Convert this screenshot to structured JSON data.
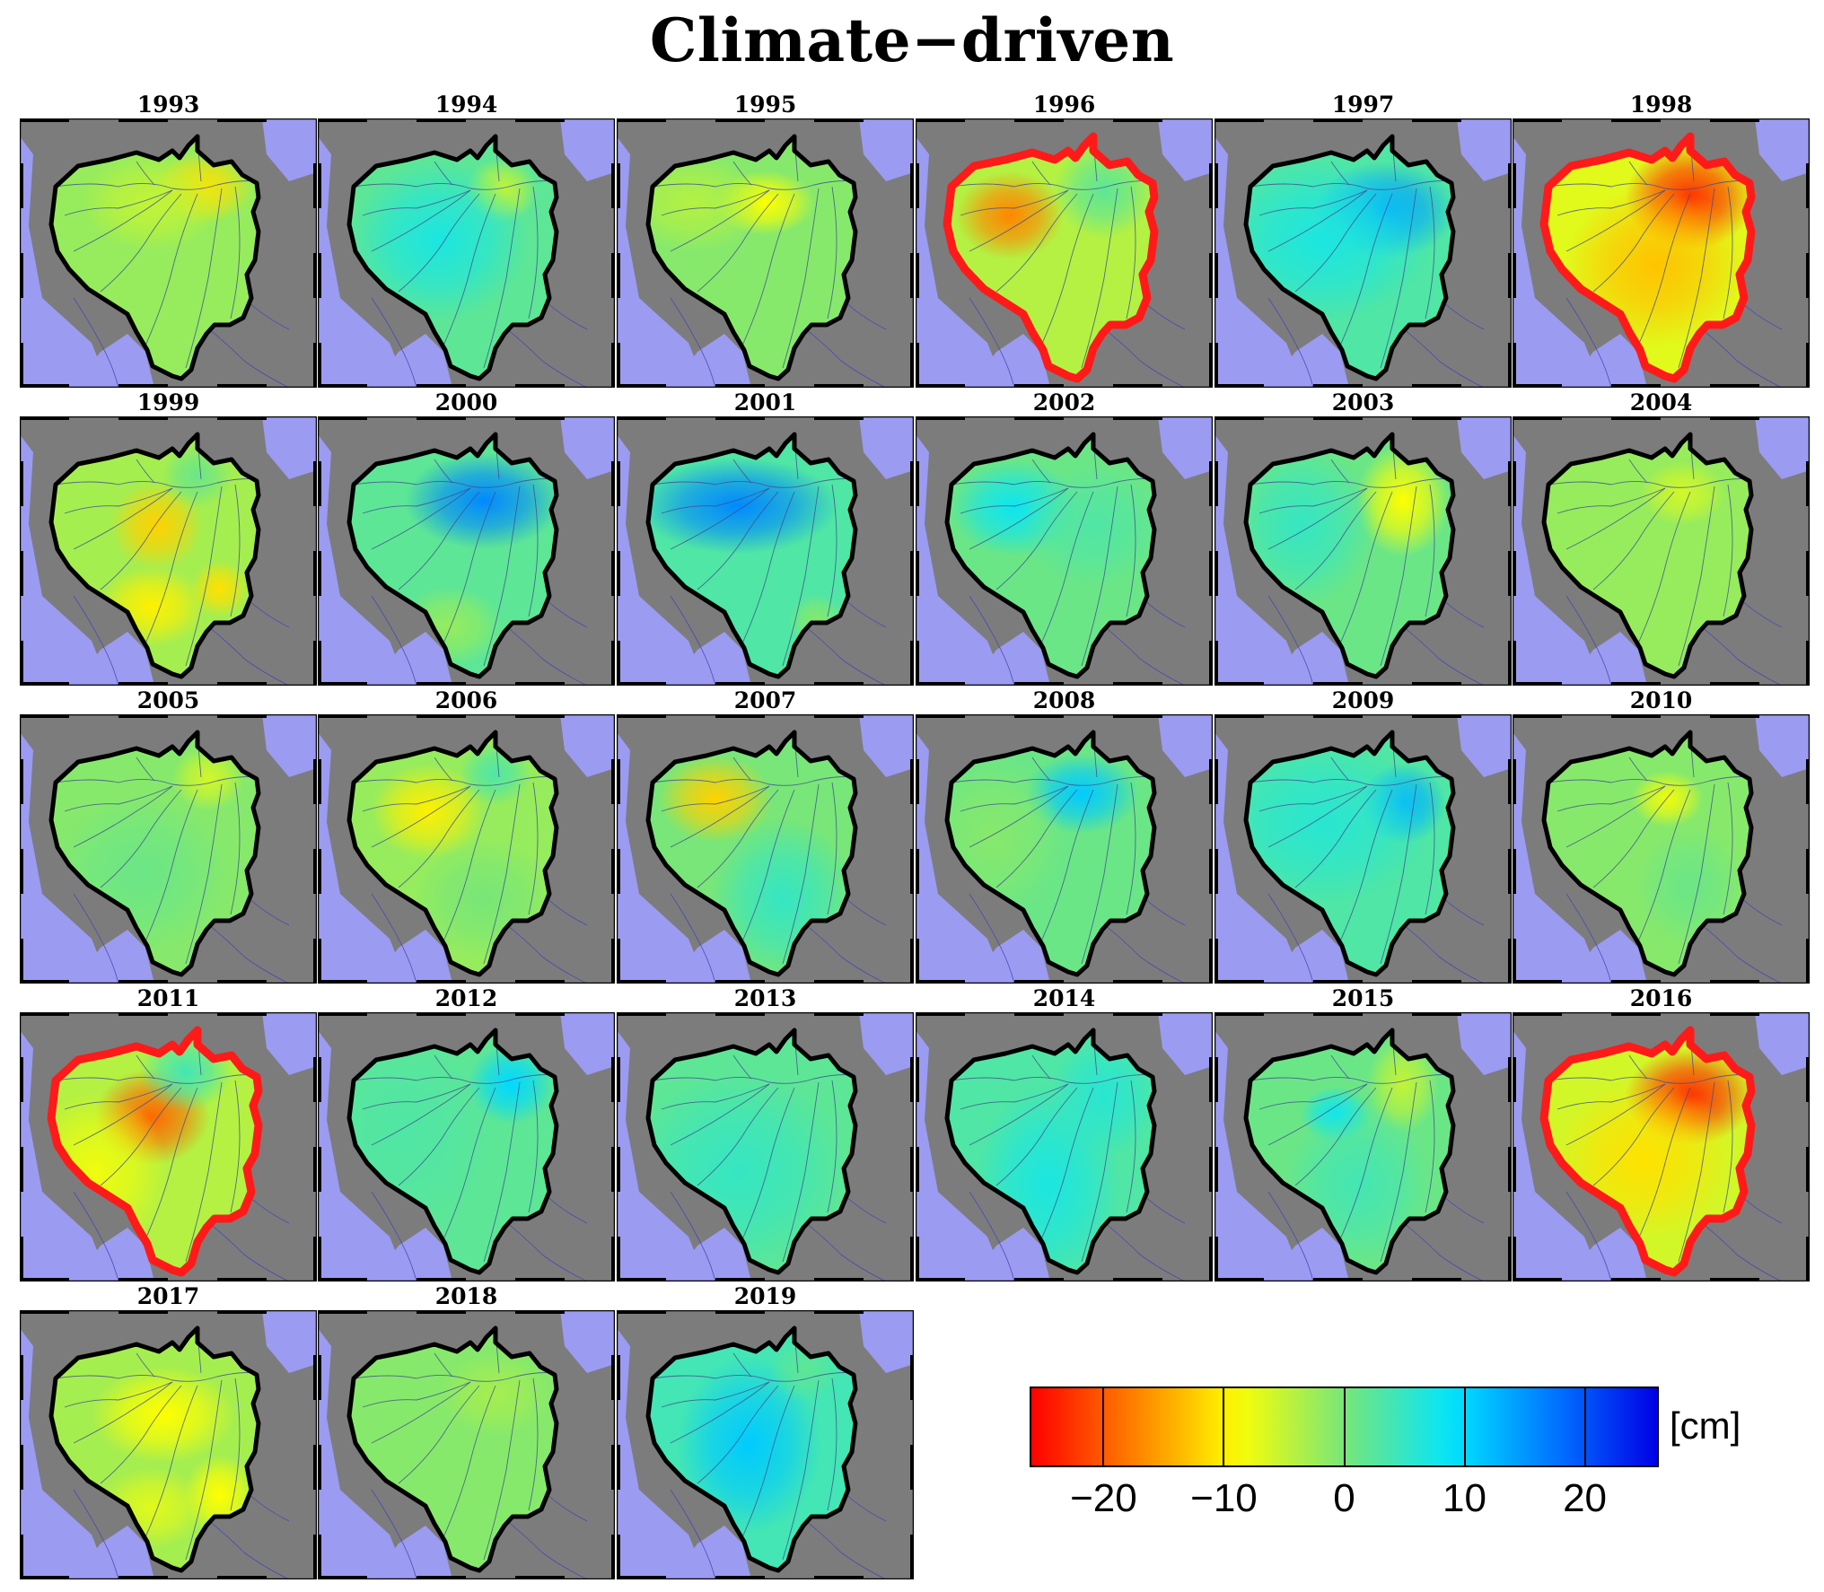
{
  "title": "Climate−driven",
  "colorbar": {
    "unit": "[cm]",
    "tick_labels": [
      "−20",
      "−10",
      "0",
      "10",
      "20"
    ],
    "tick_values": [
      -20,
      -10,
      0,
      10,
      20
    ],
    "range": [
      -26,
      26
    ],
    "colormap": "jet_reversed (red = negative, blue = positive)"
  },
  "colors": {
    "ocean": "#9b9bf2",
    "land": "#7c7c7c",
    "highlight_outline": "#ff1a1a",
    "basin_outline": "#000000"
  },
  "panels": [
    {
      "year": "1993",
      "highlight": false,
      "base": -2,
      "anomalies": [
        [
          0.78,
          0.24,
          -9,
          0.14,
          0.09
        ],
        [
          0.55,
          0.3,
          -3,
          0.2,
          0.12
        ]
      ]
    },
    {
      "year": "1994",
      "highlight": false,
      "base": 2,
      "anomalies": [
        [
          0.78,
          0.25,
          -7,
          0.1,
          0.08
        ],
        [
          0.5,
          0.45,
          5,
          0.25,
          0.2
        ]
      ]
    },
    {
      "year": "1995",
      "highlight": false,
      "base": -1,
      "anomalies": [
        [
          0.62,
          0.3,
          -8,
          0.14,
          0.08
        ],
        [
          0.3,
          0.3,
          -3,
          0.2,
          0.12
        ]
      ]
    },
    {
      "year": "1996",
      "highlight": true,
      "base": -4,
      "anomalies": [
        [
          0.38,
          0.35,
          -13,
          0.15,
          0.11
        ],
        [
          0.8,
          0.25,
          6,
          0.14,
          0.12
        ]
      ]
    },
    {
      "year": "1997",
      "highlight": false,
      "base": 3,
      "anomalies": [
        [
          0.72,
          0.33,
          11,
          0.2,
          0.12
        ],
        [
          0.45,
          0.45,
          4,
          0.3,
          0.2
        ]
      ]
    },
    {
      "year": "1998",
      "highlight": true,
      "base": -7,
      "anomalies": [
        [
          0.75,
          0.28,
          -16,
          0.18,
          0.13
        ],
        [
          0.6,
          0.55,
          -6,
          0.25,
          0.2
        ]
      ]
    },
    {
      "year": "1999",
      "highlight": false,
      "base": -3,
      "anomalies": [
        [
          0.57,
          0.4,
          -9,
          0.13,
          0.11
        ],
        [
          0.55,
          0.72,
          -7,
          0.15,
          0.1
        ],
        [
          0.85,
          0.65,
          -8,
          0.08,
          0.07
        ],
        [
          0.75,
          0.2,
          4,
          0.1,
          0.08
        ]
      ]
    },
    {
      "year": "2000",
      "highlight": false,
      "base": 2,
      "anomalies": [
        [
          0.7,
          0.3,
          14,
          0.22,
          0.12
        ],
        [
          0.55,
          0.8,
          -4,
          0.15,
          0.1
        ]
      ]
    },
    {
      "year": "2001",
      "highlight": false,
      "base": 3,
      "anomalies": [
        [
          0.5,
          0.32,
          13,
          0.28,
          0.12
        ],
        [
          0.85,
          0.78,
          -4,
          0.08,
          0.07
        ]
      ]
    },
    {
      "year": "2002",
      "highlight": false,
      "base": 1,
      "anomalies": [
        [
          0.4,
          0.33,
          7,
          0.18,
          0.12
        ],
        [
          0.75,
          0.4,
          2,
          0.2,
          0.15
        ]
      ]
    },
    {
      "year": "2003",
      "highlight": false,
      "base": 1,
      "anomalies": [
        [
          0.8,
          0.3,
          -10,
          0.13,
          0.14
        ],
        [
          0.35,
          0.4,
          4,
          0.2,
          0.2
        ]
      ]
    },
    {
      "year": "2004",
      "highlight": false,
      "base": -2,
      "anomalies": [
        [
          0.72,
          0.27,
          -4,
          0.12,
          0.08
        ]
      ]
    },
    {
      "year": "2005",
      "highlight": false,
      "base": -1,
      "anomalies": [
        [
          0.8,
          0.22,
          -5,
          0.1,
          0.08
        ],
        [
          0.5,
          0.6,
          2,
          0.25,
          0.2
        ]
      ]
    },
    {
      "year": "2006",
      "highlight": false,
      "base": -2,
      "anomalies": [
        [
          0.45,
          0.35,
          -8,
          0.16,
          0.12
        ],
        [
          0.75,
          0.2,
          5,
          0.1,
          0.08
        ],
        [
          0.7,
          0.7,
          2,
          0.2,
          0.15
        ]
      ]
    },
    {
      "year": "2007",
      "highlight": false,
      "base": 0,
      "anomalies": [
        [
          0.4,
          0.3,
          -12,
          0.16,
          0.11
        ],
        [
          0.7,
          0.7,
          5,
          0.2,
          0.2
        ]
      ]
    },
    {
      "year": "2008",
      "highlight": false,
      "base": 1,
      "anomalies": [
        [
          0.7,
          0.28,
          10,
          0.16,
          0.1
        ],
        [
          0.3,
          0.45,
          -2,
          0.2,
          0.2
        ]
      ]
    },
    {
      "year": "2009",
      "highlight": false,
      "base": 3,
      "anomalies": [
        [
          0.8,
          0.32,
          10,
          0.12,
          0.1
        ],
        [
          0.45,
          0.4,
          3,
          0.3,
          0.2
        ]
      ]
    },
    {
      "year": "2010",
      "highlight": false,
      "base": -1,
      "anomalies": [
        [
          0.65,
          0.3,
          -7,
          0.1,
          0.07
        ],
        [
          0.75,
          0.65,
          2,
          0.15,
          0.15
        ]
      ]
    },
    {
      "year": "2011",
      "highlight": true,
      "base": -4,
      "anomalies": [
        [
          0.55,
          0.38,
          -15,
          0.16,
          0.12
        ],
        [
          0.7,
          0.2,
          8,
          0.13,
          0.1
        ],
        [
          0.3,
          0.6,
          -4,
          0.2,
          0.2
        ]
      ]
    },
    {
      "year": "2012",
      "highlight": false,
      "base": 2,
      "anomalies": [
        [
          0.82,
          0.25,
          8,
          0.12,
          0.1
        ],
        [
          0.35,
          0.45,
          1,
          0.25,
          0.25
        ]
      ]
    },
    {
      "year": "2013",
      "highlight": false,
      "base": 2,
      "anomalies": [
        [
          0.5,
          0.6,
          3,
          0.3,
          0.25
        ]
      ]
    },
    {
      "year": "2014",
      "highlight": false,
      "base": 3,
      "anomalies": [
        [
          0.55,
          0.65,
          4,
          0.2,
          0.25
        ],
        [
          0.8,
          0.3,
          3,
          0.15,
          0.15
        ]
      ]
    },
    {
      "year": "2015",
      "highlight": false,
      "base": 1,
      "anomalies": [
        [
          0.5,
          0.37,
          7,
          0.1,
          0.07
        ],
        [
          0.8,
          0.25,
          -6,
          0.1,
          0.12
        ],
        [
          0.6,
          0.65,
          3,
          0.2,
          0.2
        ]
      ]
    },
    {
      "year": "2016",
      "highlight": true,
      "base": -6,
      "anomalies": [
        [
          0.75,
          0.3,
          -17,
          0.18,
          0.12
        ],
        [
          0.55,
          0.55,
          -5,
          0.25,
          0.2
        ]
      ]
    },
    {
      "year": "2017",
      "highlight": false,
      "base": -3,
      "anomalies": [
        [
          0.6,
          0.38,
          -6,
          0.2,
          0.12
        ],
        [
          0.85,
          0.7,
          -6,
          0.1,
          0.1
        ],
        [
          0.55,
          0.75,
          -4,
          0.15,
          0.1
        ]
      ]
    },
    {
      "year": "2018",
      "highlight": false,
      "base": -1,
      "anomalies": [
        [
          0.75,
          0.3,
          -2,
          0.15,
          0.1
        ]
      ]
    },
    {
      "year": "2019",
      "highlight": false,
      "base": 4,
      "anomalies": [
        [
          0.55,
          0.5,
          7,
          0.2,
          0.22
        ],
        [
          0.8,
          0.2,
          -2,
          0.1,
          0.08
        ]
      ]
    }
  ]
}
